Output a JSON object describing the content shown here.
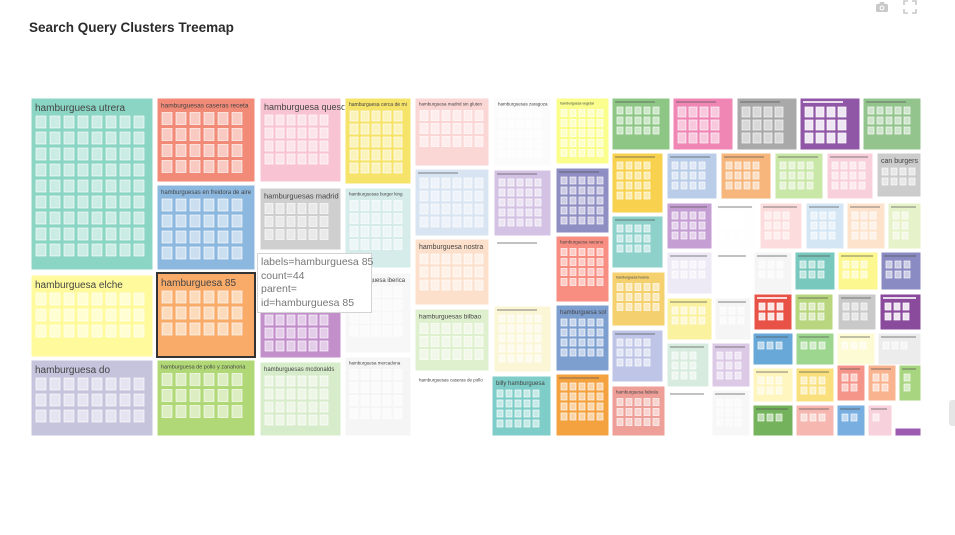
{
  "page": {
    "title": "Search Query Clusters Treemap"
  },
  "toolbar": {
    "icons": [
      "camera-icon",
      "fullscreen-icon"
    ]
  },
  "tooltip": {
    "labels_line": "labels=hamburguesa 85",
    "count_line": "count=44",
    "parent_line": "parent=",
    "id_line": "id=hamburguesa 85"
  },
  "chart_data": {
    "type": "treemap",
    "title": "Search Query Clusters Treemap",
    "hover": {
      "label": "hamburguesa 85",
      "count": 44,
      "parent": "",
      "id": "hamburguesa 85"
    },
    "cells": [
      {
        "label": "hamburguesa utrera",
        "color": "#8ad5c3",
        "size": "large"
      },
      {
        "label": "hamburguesas caseras receta",
        "color": "#f18a77",
        "size": "medium"
      },
      {
        "label": "hamburguesa queso",
        "color": "#f8c4d3",
        "size": "medium"
      },
      {
        "label": "hamburguesa cerca de mi",
        "color": "#f6e46a",
        "size": "small"
      },
      {
        "label": "hamburguesa madrid sin gluten",
        "color": "#fad6d5",
        "size": "small"
      },
      {
        "label": "hamburguesas zaragoza",
        "color": "#fbfbfb",
        "size": "small"
      },
      {
        "label": "hamburguesa vegetal",
        "color": "#fafe8c",
        "size": "small"
      },
      {
        "label": "hamburguesas en freidora de aire",
        "color": "#8cb8df",
        "size": "medium"
      },
      {
        "label": "hamburguesas madrid",
        "color": "#cfcfcf",
        "size": "medium"
      },
      {
        "label": "hamburguesas burger king",
        "color": "#d6ecea",
        "size": "small"
      },
      {
        "label": "hamburguesa nostra",
        "color": "#fde0cb",
        "size": "small"
      },
      {
        "label": "hamburguesa iberica",
        "color": "#f7f7f7",
        "size": "small"
      },
      {
        "label": "hamburguesa elche",
        "color": "#fffb9c",
        "size": "large"
      },
      {
        "label": "hamburguesa 85",
        "color": "#f9ac6a",
        "size": "medium"
      },
      {
        "label": "hamburguesas bilbao",
        "color": "#dff0cf",
        "size": "small"
      },
      {
        "label": "hamburguesa do",
        "color": "#c6c4dd",
        "size": "large"
      },
      {
        "label": "hamburguesa de pollo y zanahoria",
        "color": "#b1d877",
        "size": "medium"
      },
      {
        "label": "hamburguesas mcdonalds",
        "color": "#d7ecca",
        "size": "medium"
      },
      {
        "label": "hamburguesa mercadona",
        "color": "#f5f5f5",
        "size": "small"
      },
      {
        "label": "hamburguesas caseras de pollo",
        "color": "#ffffff",
        "size": "small"
      },
      {
        "label": "hamburguesa vacuno",
        "color": "#f88e82",
        "size": "small"
      },
      {
        "label": "hamburguesa sol",
        "color": "#7d9fd0",
        "size": "small"
      },
      {
        "label": "billy hamburguesa",
        "color": "#7fcdc8",
        "size": "small"
      },
      {
        "label": "hamburguesa fabiola",
        "color": "#ee9f97",
        "size": "small"
      },
      {
        "label": "hamburguesa huelva",
        "color": "#f4d06e",
        "size": "small"
      },
      {
        "label": "can burgers",
        "color": "#cccccc",
        "size": "small"
      }
    ]
  }
}
